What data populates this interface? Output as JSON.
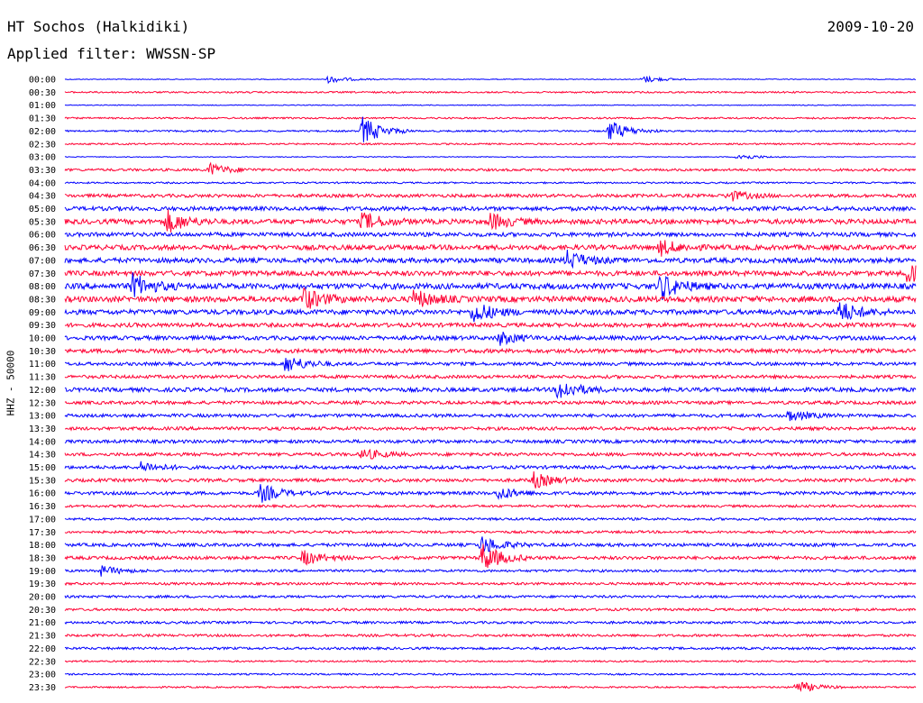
{
  "header": {
    "station": "HT Sochos (Halkidiki)",
    "date": "2009-10-20",
    "filter": "Applied filter: WWSSN-SP"
  },
  "axis": {
    "ylabel": "HHZ - 50000"
  },
  "colors": {
    "trace_a": "#0000ff",
    "trace_b": "#ff0033",
    "background": "#ffffff",
    "text": "#000000"
  },
  "chart_data": {
    "type": "line",
    "title": "HT Sochos (Halkidiki)",
    "subtitle": "Applied filter: WWSSN-SP",
    "ylabel": "HHZ - 50000",
    "row_labels": [
      "00:00",
      "00:30",
      "01:00",
      "01:30",
      "02:00",
      "02:30",
      "03:00",
      "03:30",
      "04:00",
      "04:30",
      "05:00",
      "05:30",
      "06:00",
      "06:30",
      "07:00",
      "07:30",
      "08:00",
      "08:30",
      "09:00",
      "09:30",
      "10:00",
      "10:30",
      "11:00",
      "11:30",
      "12:00",
      "12:30",
      "13:00",
      "13:30",
      "14:00",
      "14:30",
      "15:00",
      "15:30",
      "16:00",
      "16:30",
      "17:00",
      "17:30",
      "18:00",
      "18:30",
      "19:00",
      "19:30",
      "20:00",
      "20:30",
      "21:00",
      "21:30",
      "22:00",
      "22:30",
      "23:00",
      "23:30"
    ],
    "series": [
      {
        "values": [
          1,
          2,
          1,
          2,
          2,
          2,
          1,
          3,
          2,
          4,
          5,
          6,
          5,
          6,
          6,
          6,
          7,
          7,
          6,
          5,
          5,
          5,
          4,
          4,
          5,
          4,
          4,
          4,
          4,
          4,
          4,
          4,
          4,
          3,
          3,
          3,
          4,
          4,
          3,
          3,
          3,
          3,
          3,
          3,
          3,
          2,
          2,
          2
        ]
      }
    ],
    "events": [
      {
        "row": "00:00",
        "t": 0.31,
        "amp": 4
      },
      {
        "row": "00:00",
        "t": 0.68,
        "amp": 4
      },
      {
        "row": "02:00",
        "t": 0.35,
        "amp": 16
      },
      {
        "row": "02:00",
        "t": 0.64,
        "amp": 12
      },
      {
        "row": "03:00",
        "t": 0.79,
        "amp": 4
      },
      {
        "row": "03:30",
        "t": 0.17,
        "amp": 7
      },
      {
        "row": "04:30",
        "t": 0.78,
        "amp": 6
      },
      {
        "row": "05:30",
        "t": 0.12,
        "amp": 12
      },
      {
        "row": "05:30",
        "t": 0.35,
        "amp": 10
      },
      {
        "row": "05:30",
        "t": 0.5,
        "amp": 9
      },
      {
        "row": "06:30",
        "t": 0.7,
        "amp": 8
      },
      {
        "row": "07:00",
        "t": 0.59,
        "amp": 10
      },
      {
        "row": "07:30",
        "t": 0.99,
        "amp": 10
      },
      {
        "row": "08:00",
        "t": 0.08,
        "amp": 13
      },
      {
        "row": "08:00",
        "t": 0.7,
        "amp": 14
      },
      {
        "row": "08:30",
        "t": 0.28,
        "amp": 12
      },
      {
        "row": "08:30",
        "t": 0.41,
        "amp": 10
      },
      {
        "row": "09:00",
        "t": 0.48,
        "amp": 12
      },
      {
        "row": "09:00",
        "t": 0.91,
        "amp": 12
      },
      {
        "row": "10:00",
        "t": 0.51,
        "amp": 7
      },
      {
        "row": "11:00",
        "t": 0.26,
        "amp": 10
      },
      {
        "row": "12:00",
        "t": 0.58,
        "amp": 12
      },
      {
        "row": "13:00",
        "t": 0.85,
        "amp": 6
      },
      {
        "row": "14:30",
        "t": 0.35,
        "amp": 6
      },
      {
        "row": "15:00",
        "t": 0.09,
        "amp": 6
      },
      {
        "row": "15:30",
        "t": 0.55,
        "amp": 9
      },
      {
        "row": "16:00",
        "t": 0.23,
        "amp": 10
      },
      {
        "row": "16:00",
        "t": 0.51,
        "amp": 7
      },
      {
        "row": "18:00",
        "t": 0.49,
        "amp": 10
      },
      {
        "row": "18:30",
        "t": 0.49,
        "amp": 16
      },
      {
        "row": "18:30",
        "t": 0.28,
        "amp": 8
      },
      {
        "row": "19:00",
        "t": 0.04,
        "amp": 6
      },
      {
        "row": "23:30",
        "t": 0.86,
        "amp": 7
      }
    ]
  }
}
